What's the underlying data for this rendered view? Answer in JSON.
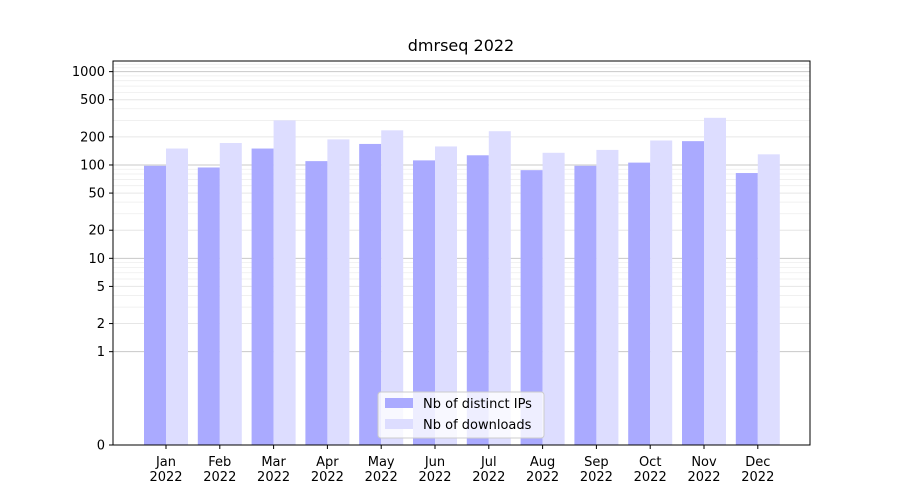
{
  "chart_data": {
    "type": "bar",
    "title": "dmrseq 2022",
    "xlabel": "",
    "ylabel": "",
    "yscale": "symlog",
    "y_ticks": [
      0,
      1,
      2,
      5,
      10,
      20,
      50,
      100,
      200,
      500,
      1000
    ],
    "y_tick_labels": [
      "0",
      "1",
      "2",
      "5",
      "10",
      "20",
      "50",
      "100",
      "200",
      "500",
      "1000"
    ],
    "ylim": [
      0,
      1300
    ],
    "categories": [
      "Jan\n2022",
      "Feb\n2022",
      "Mar\n2022",
      "Apr\n2022",
      "May\n2022",
      "Jun\n2022",
      "Jul\n2022",
      "Aug\n2022",
      "Sep\n2022",
      "Oct\n2022",
      "Nov\n2022",
      "Dec\n2022"
    ],
    "series": [
      {
        "name": "Nb of distinct IPs",
        "color": "#aaaaff",
        "values": [
          98,
          94,
          150,
          110,
          168,
          112,
          127,
          88,
          98,
          106,
          180,
          82
        ]
      },
      {
        "name": "Nb of downloads",
        "color": "#ddddff",
        "values": [
          150,
          172,
          300,
          188,
          235,
          158,
          230,
          135,
          145,
          183,
          320,
          130
        ]
      }
    ],
    "grid": true,
    "legend_position": "bottom-center"
  }
}
